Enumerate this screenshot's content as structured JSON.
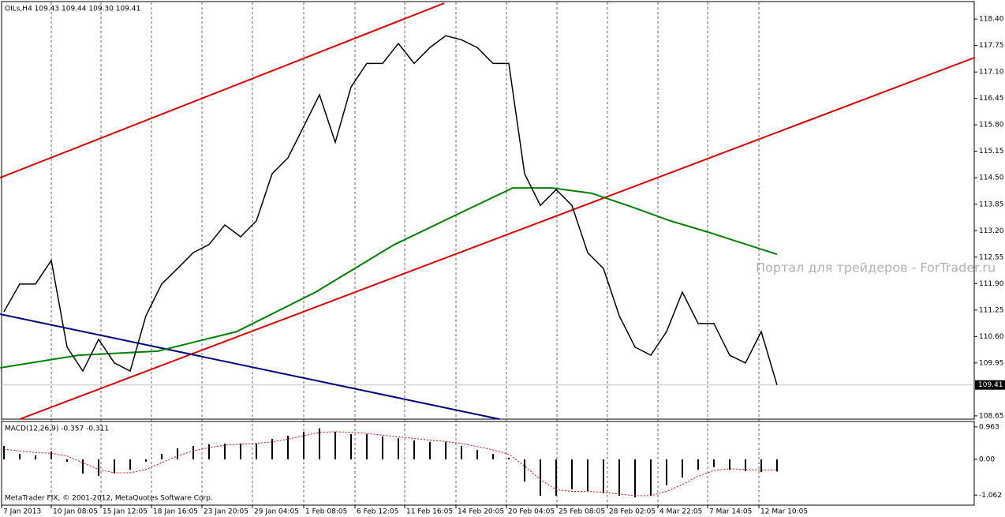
{
  "chart_data": [
    {
      "type": "line",
      "title": "OILs,H4  109.43 109.44 109.30 109.41",
      "watermark": "Портал для трейдеров - ForTrader.ru",
      "footer": "MetaTrader FIX, © 2001-2012, MetaQuotes Software Corp.",
      "x": [
        0,
        1,
        2,
        3,
        4,
        5,
        6,
        7,
        8,
        9,
        10,
        11,
        12,
        13,
        14,
        15,
        16,
        17,
        18,
        19,
        20,
        21,
        22,
        23,
        24,
        25,
        26,
        27,
        28,
        29,
        30,
        31,
        32,
        33,
        34,
        35,
        36,
        37,
        38,
        39,
        40,
        41,
        42,
        43,
        44,
        45,
        46,
        47,
        48,
        49
      ],
      "values": [
        111.21,
        111.89,
        111.89,
        112.47,
        110.34,
        109.75,
        110.53,
        109.95,
        109.75,
        111.11,
        111.89,
        112.27,
        112.66,
        112.86,
        113.34,
        113.05,
        113.44,
        114.6,
        114.99,
        115.76,
        116.54,
        115.37,
        116.73,
        117.31,
        117.31,
        117.8,
        117.31,
        117.7,
        117.99,
        117.89,
        117.7,
        117.31,
        117.31,
        114.6,
        113.82,
        114.21,
        113.82,
        112.66,
        112.27,
        111.11,
        110.34,
        110.14,
        110.72,
        111.69,
        110.92,
        110.92,
        110.14,
        109.95,
        110.72,
        109.41
      ],
      "color": "#000000",
      "moving_average": {
        "color": "#008000",
        "x": [
          -0.25,
          4.75,
          9.75,
          14.75,
          19.75,
          24.75,
          29.75,
          32.25,
          34.75,
          37.25,
          39.75,
          42.25,
          44.75,
          49
        ],
        "values": [
          109.83,
          110.14,
          110.24,
          110.72,
          111.69,
          112.86,
          113.79,
          114.25,
          114.25,
          114.12,
          113.79,
          113.44,
          113.15,
          112.62
        ]
      },
      "trend_lines": [
        {
          "color": "#e00000",
          "x": [
            -0.25,
            27.9
          ],
          "values": [
            114.5,
            118.79
          ]
        },
        {
          "color": "#e00000",
          "x": [
            1,
            61.5
          ],
          "values": [
            108.57,
            117.45
          ]
        },
        {
          "color": "#000080",
          "x": [
            -0.25,
            31.4
          ],
          "values": [
            111.15,
            108.57
          ]
        }
      ],
      "last_price": 109.41,
      "xlim": [
        -0.25,
        61.5
      ],
      "ylim": [
        108.57,
        118.81
      ],
      "yticks": [
        {
          "value": 118.4,
          "label": "118.40"
        },
        117.75,
        {
          "value": 117.1,
          "label": "117.10"
        },
        116.45,
        {
          "value": 115.8,
          "label": "115.80"
        },
        115.15,
        {
          "value": 114.5,
          "label": "114.50"
        },
        113.85,
        {
          "value": 113.2,
          "label": "113.20"
        },
        112.55,
        {
          "value": 111.9,
          "label": "111.90"
        },
        111.25,
        {
          "value": 110.6,
          "label": "110.60"
        },
        109.95,
        108.65
      ],
      "xticks": [
        {
          "value": -0.15,
          "label": "7 Jan 2013"
        },
        {
          "value": 3,
          "label": "10 Jan 08:05"
        },
        {
          "value": 6.15,
          "label": "15 Jan 12:05"
        },
        {
          "value": 9.35,
          "label": "18 Jan 16:05"
        },
        {
          "value": 12.55,
          "label": "23 Jan 20:05"
        },
        {
          "value": 15.75,
          "label": "29 Jan 04:05"
        },
        {
          "value": 19,
          "label": "1 Feb 08:05"
        },
        {
          "value": 22.25,
          "label": "6 Feb 12:05"
        },
        {
          "value": 25.4,
          "label": "11 Feb 16:05"
        },
        {
          "value": 28.65,
          "label": "14 Feb 20:05"
        },
        {
          "value": 31.85,
          "label": "20 Feb 04:05"
        },
        {
          "value": 35.05,
          "label": "25 Feb 08:05"
        },
        {
          "value": 38.25,
          "label": "28 Feb 02:05"
        },
        {
          "value": 41.45,
          "label": "4 Mar 22:05"
        },
        {
          "value": 44.6,
          "label": "7 Mar 14:05"
        },
        {
          "value": 47.85,
          "label": "12 Mar 10:05"
        }
      ],
      "grid": true
    },
    {
      "type": "bar",
      "title": "MACD(12,26,9) -0.357 -0.311",
      "x": [
        0,
        1,
        2,
        3,
        4,
        5,
        6,
        7,
        8,
        9,
        10,
        11,
        12,
        13,
        14,
        15,
        16,
        17,
        18,
        19,
        20,
        21,
        22,
        23,
        24,
        25,
        26,
        27,
        28,
        29,
        30,
        31,
        32,
        33,
        34,
        35,
        36,
        37,
        38,
        39,
        40,
        41,
        42,
        43,
        44,
        45,
        46,
        47,
        48,
        49
      ],
      "values": [
        0.4,
        0.16,
        0.12,
        0.23,
        -0.07,
        -0.42,
        -0.49,
        -0.42,
        -0.31,
        -0.07,
        0.16,
        0.33,
        0.4,
        0.45,
        0.47,
        0.47,
        0.47,
        0.61,
        0.7,
        0.82,
        0.92,
        0.82,
        0.75,
        0.75,
        0.68,
        0.63,
        0.56,
        0.52,
        0.52,
        0.4,
        0.28,
        0.16,
        0.05,
        -0.66,
        -1.08,
        -1.08,
        -0.89,
        -0.94,
        -1.01,
        -1.08,
        -1.13,
        -1.08,
        -0.77,
        -0.54,
        -0.31,
        -0.23,
        -0.31,
        -0.35,
        -0.38,
        -0.36
      ],
      "color": "#000000",
      "signal": {
        "color": "#e00000",
        "values": [
          0.3,
          0.25,
          0.2,
          0.18,
          0.1,
          -0.1,
          -0.3,
          -0.4,
          -0.4,
          -0.3,
          -0.1,
          0.1,
          0.25,
          0.35,
          0.42,
          0.45,
          0.47,
          0.52,
          0.6,
          0.7,
          0.8,
          0.82,
          0.8,
          0.77,
          0.72,
          0.67,
          0.62,
          0.57,
          0.53,
          0.47,
          0.38,
          0.28,
          0.15,
          -0.2,
          -0.6,
          -0.9,
          -0.95,
          -0.95,
          -0.98,
          -1.03,
          -1.08,
          -1.08,
          -0.95,
          -0.75,
          -0.5,
          -0.33,
          -0.28,
          -0.3,
          -0.32,
          -0.31
        ]
      },
      "xlim": [
        -0.25,
        61.5
      ],
      "ylim": [
        -1.36,
        1.1
      ],
      "yticks": [
        0.963,
        {
          "value": 0,
          "label": "0.00"
        },
        -1.062
      ]
    }
  ]
}
